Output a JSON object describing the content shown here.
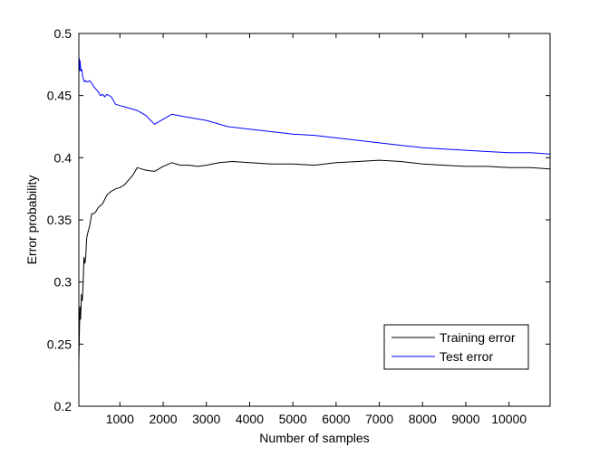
{
  "chart_data": {
    "type": "line",
    "xlabel": "Number of samples",
    "ylabel": "Error probability",
    "xlim": [
      50,
      10950
    ],
    "ylim": [
      0.2,
      0.5
    ],
    "xticks": [
      1000,
      2000,
      3000,
      4000,
      5000,
      6000,
      7000,
      8000,
      9000,
      10000
    ],
    "xtick_labels": [
      "1000",
      "2000",
      "3000",
      "4000",
      "5000",
      "6000",
      "7000",
      "8000",
      "9000",
      "10000"
    ],
    "yticks": [
      0.2,
      0.25,
      0.3,
      0.35,
      0.4,
      0.45,
      0.5
    ],
    "ytick_labels": [
      "0.2",
      "0.25",
      "0.3",
      "0.35",
      "0.4",
      "0.45",
      "0.5"
    ],
    "grid": false,
    "legend_position": "bottom-right",
    "series": [
      {
        "name": "Training error",
        "color": "#000000",
        "x": [
          50,
          60,
          75,
          90,
          110,
          130,
          150,
          170,
          190,
          210,
          230,
          260,
          300,
          350,
          400,
          450,
          500,
          600,
          700,
          800,
          900,
          1000,
          1100,
          1200,
          1300,
          1400,
          1500,
          1600,
          1800,
          2000,
          2200,
          2400,
          2600,
          2800,
          3000,
          3300,
          3600,
          4000,
          4500,
          5000,
          5500,
          6000,
          6500,
          7000,
          7500,
          8000,
          8500,
          9000,
          9500,
          10000,
          10500,
          10950
        ],
        "y": [
          0.235,
          0.255,
          0.28,
          0.27,
          0.29,
          0.285,
          0.3,
          0.32,
          0.315,
          0.32,
          0.335,
          0.34,
          0.345,
          0.355,
          0.355,
          0.357,
          0.36,
          0.363,
          0.37,
          0.373,
          0.375,
          0.376,
          0.378,
          0.382,
          0.386,
          0.392,
          0.391,
          0.39,
          0.389,
          0.393,
          0.396,
          0.394,
          0.394,
          0.393,
          0.394,
          0.396,
          0.397,
          0.396,
          0.395,
          0.395,
          0.394,
          0.396,
          0.397,
          0.398,
          0.397,
          0.395,
          0.394,
          0.393,
          0.393,
          0.392,
          0.392,
          0.391
        ]
      },
      {
        "name": "Test error",
        "color": "#0000ff",
        "x": [
          50,
          60,
          70,
          80,
          90,
          100,
          120,
          140,
          160,
          180,
          200,
          250,
          300,
          350,
          400,
          450,
          500,
          550,
          600,
          650,
          700,
          800,
          900,
          1000,
          1100,
          1200,
          1400,
          1600,
          1800,
          2000,
          2200,
          2500,
          3000,
          3500,
          4000,
          4500,
          5000,
          5500,
          6000,
          6500,
          7000,
          7500,
          8000,
          8500,
          9000,
          9500,
          10000,
          10500,
          10950
        ],
        "y": [
          0.475,
          0.48,
          0.47,
          0.478,
          0.472,
          0.47,
          0.471,
          0.465,
          0.463,
          0.461,
          0.462,
          0.461,
          0.462,
          0.46,
          0.457,
          0.455,
          0.453,
          0.45,
          0.451,
          0.449,
          0.451,
          0.449,
          0.443,
          0.442,
          0.441,
          0.44,
          0.438,
          0.434,
          0.427,
          0.431,
          0.435,
          0.433,
          0.43,
          0.425,
          0.423,
          0.421,
          0.419,
          0.418,
          0.416,
          0.414,
          0.412,
          0.41,
          0.408,
          0.407,
          0.406,
          0.405,
          0.404,
          0.404,
          0.403
        ]
      }
    ]
  }
}
